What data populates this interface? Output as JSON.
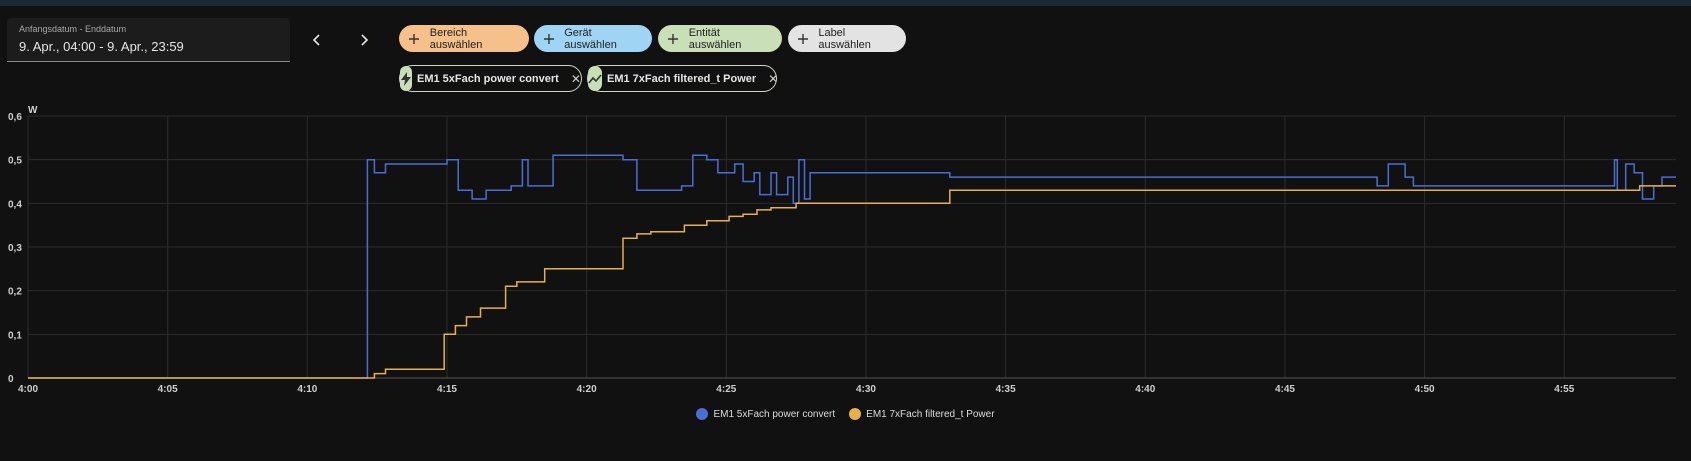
{
  "date_range": {
    "label": "Anfangsdatum - Enddatum",
    "value": "9. Apr., 04:00 - 9. Apr., 23:59"
  },
  "nav": {
    "prev_icon": "chevron-left-icon",
    "next_icon": "chevron-right-icon"
  },
  "filters": [
    {
      "label": "Bereich auswählen",
      "color": "#f6c08a",
      "icon": "plus-icon"
    },
    {
      "label": "Gerät auswählen",
      "color": "#9fd4f5",
      "icon": "plus-icon"
    },
    {
      "label": "Entität auswählen",
      "color": "#c9dfb8",
      "icon": "plus-icon"
    },
    {
      "label": "Label auswählen",
      "color": "#e3e3e3",
      "icon": "plus-icon"
    }
  ],
  "entities": [
    {
      "label": "EM1 5xFach power convert",
      "icon": "flash-icon"
    },
    {
      "label": "EM1 7xFach filtered_t Power",
      "icon": "chart-line-icon"
    }
  ],
  "colors": {
    "series_blue": "#4a6fd4",
    "series_orange": "#e6b04a"
  },
  "chart_data": {
    "type": "line",
    "step": true,
    "ylabel": "W",
    "xlabel": "",
    "title": "",
    "ylim": [
      0,
      0.6
    ],
    "xlim": [
      0,
      59
    ],
    "x_ticks": [
      "4:00",
      "4:05",
      "4:10",
      "4:15",
      "4:20",
      "4:25",
      "4:30",
      "4:35",
      "4:40",
      "4:45",
      "4:50",
      "4:55"
    ],
    "x_tick_minutes": [
      0,
      5,
      10,
      15,
      20,
      25,
      30,
      35,
      40,
      45,
      50,
      55
    ],
    "y_ticks": [
      "0",
      "0,1",
      "0,2",
      "0,3",
      "0,4",
      "0,5",
      "0,6"
    ],
    "y_tick_values": [
      0,
      0.1,
      0.2,
      0.3,
      0.4,
      0.5,
      0.6
    ],
    "grid": true,
    "legend": "bottom-center",
    "series": [
      {
        "name": "EM1 5xFach power convert",
        "color": "#4a6fd4",
        "points": [
          [
            0,
            0
          ],
          [
            12.05,
            0
          ],
          [
            12.15,
            0.5
          ],
          [
            12.4,
            0.47
          ],
          [
            12.8,
            0.49
          ],
          [
            15,
            0.5
          ],
          [
            15.4,
            0.43
          ],
          [
            15.9,
            0.41
          ],
          [
            16.4,
            0.43
          ],
          [
            17.3,
            0.44
          ],
          [
            17.7,
            0.5
          ],
          [
            17.9,
            0.44
          ],
          [
            18.8,
            0.51
          ],
          [
            20.2,
            0.51
          ],
          [
            21.3,
            0.5
          ],
          [
            21.8,
            0.43
          ],
          [
            23.4,
            0.44
          ],
          [
            23.8,
            0.51
          ],
          [
            24.3,
            0.5
          ],
          [
            24.7,
            0.47
          ],
          [
            25.3,
            0.49
          ],
          [
            25.6,
            0.45
          ],
          [
            26,
            0.47
          ],
          [
            26.2,
            0.42
          ],
          [
            26.6,
            0.47
          ],
          [
            26.8,
            0.42
          ],
          [
            27.2,
            0.46
          ],
          [
            27.4,
            0.4
          ],
          [
            27.6,
            0.5
          ],
          [
            27.8,
            0.41
          ],
          [
            28,
            0.47
          ],
          [
            33,
            0.46
          ],
          [
            48.3,
            0.44
          ],
          [
            48.7,
            0.49
          ],
          [
            49.3,
            0.46
          ],
          [
            49.6,
            0.44
          ],
          [
            56.8,
            0.5
          ],
          [
            56.9,
            0.43
          ],
          [
            57.2,
            0.49
          ],
          [
            57.5,
            0.47
          ],
          [
            57.8,
            0.41
          ],
          [
            58.2,
            0.44
          ],
          [
            58.5,
            0.46
          ],
          [
            59,
            0.46
          ]
        ]
      },
      {
        "name": "EM1 7xFach filtered_t Power",
        "color": "#e6b04a",
        "points": [
          [
            0,
            0
          ],
          [
            12.3,
            0
          ],
          [
            12.4,
            0.01
          ],
          [
            12.8,
            0.02
          ],
          [
            14.9,
            0.1
          ],
          [
            15.3,
            0.12
          ],
          [
            15.7,
            0.14
          ],
          [
            16.2,
            0.16
          ],
          [
            17.1,
            0.21
          ],
          [
            17.5,
            0.22
          ],
          [
            18.5,
            0.25
          ],
          [
            21.3,
            0.32
          ],
          [
            21.8,
            0.33
          ],
          [
            22.3,
            0.335
          ],
          [
            23.5,
            0.35
          ],
          [
            24.3,
            0.36
          ],
          [
            25.1,
            0.37
          ],
          [
            25.6,
            0.375
          ],
          [
            26.1,
            0.385
          ],
          [
            26.6,
            0.39
          ],
          [
            27.5,
            0.4
          ],
          [
            33,
            0.43
          ],
          [
            57,
            0.43
          ],
          [
            57.7,
            0.44
          ],
          [
            59,
            0.44
          ]
        ]
      }
    ]
  }
}
